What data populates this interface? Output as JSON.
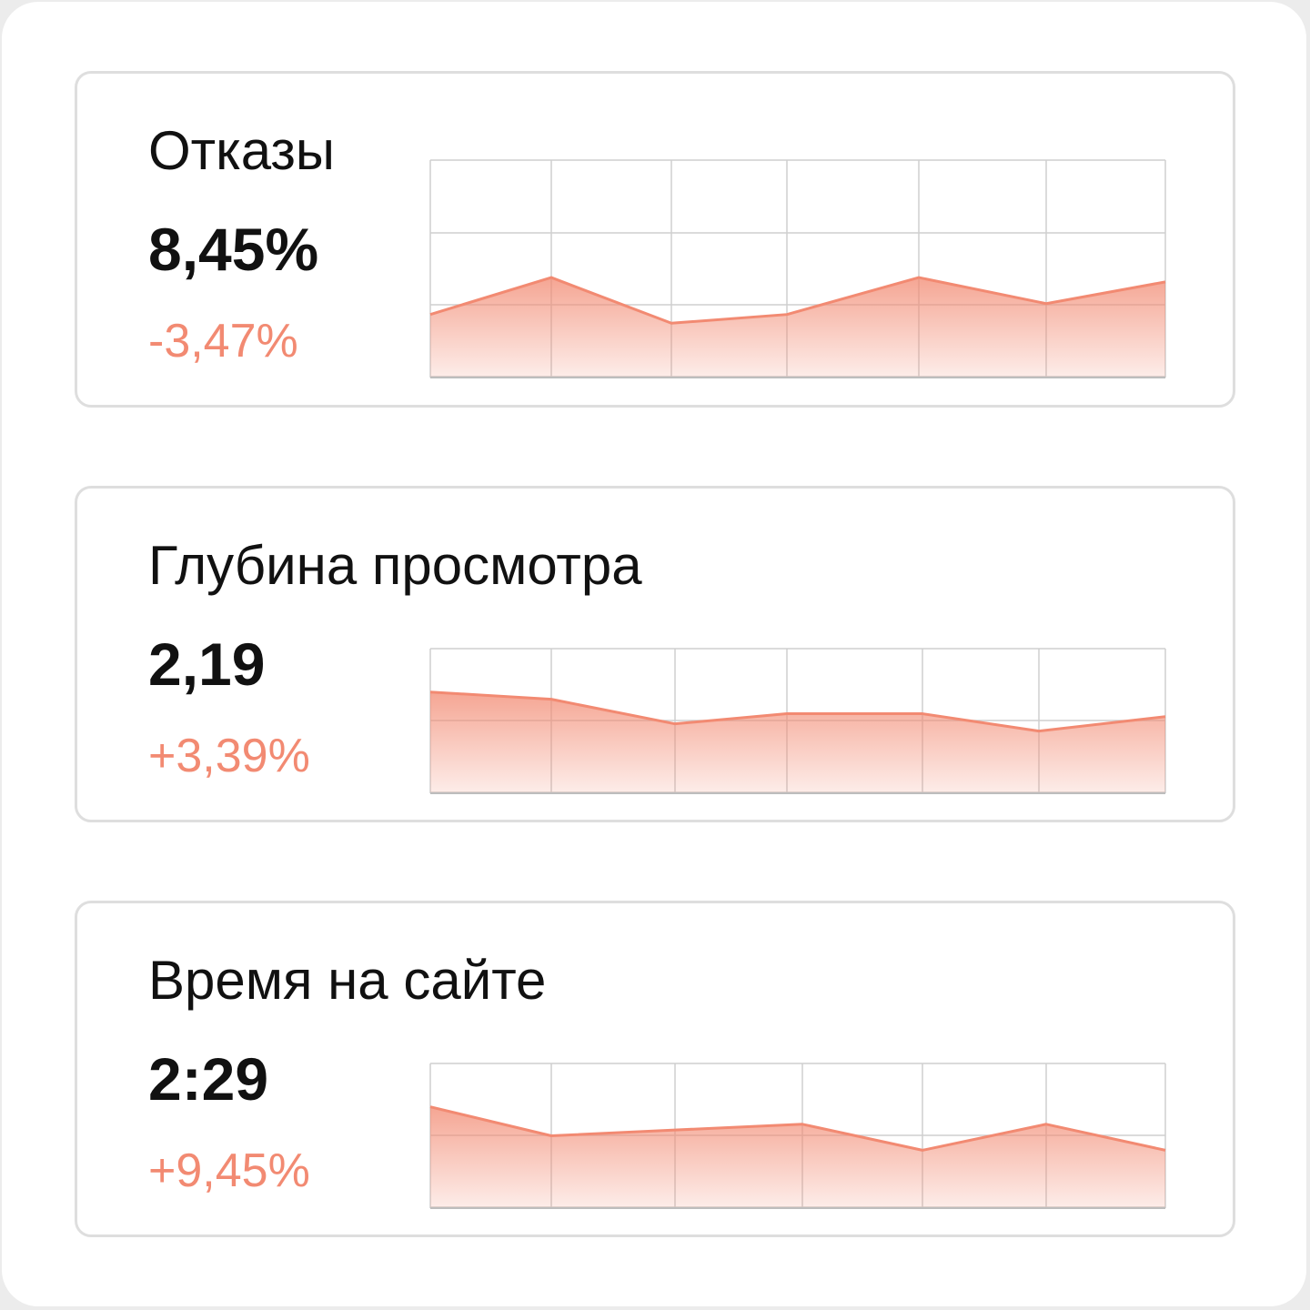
{
  "accent": "#f28a72",
  "cards": [
    {
      "title": "Отказы",
      "value": "8,45%",
      "change": "-3,47%"
    },
    {
      "title": "Глубина просмотра",
      "value": "2,19",
      "change": "+3,39%"
    },
    {
      "title": "Время на сайте",
      "value": "2:29",
      "change": "+9,45%"
    }
  ],
  "chart_data": [
    {
      "type": "area",
      "metric": "Отказы",
      "values": [
        0.29,
        0.46,
        0.25,
        0.29,
        0.46,
        0.34,
        0.44
      ],
      "ylim": [
        0,
        1
      ],
      "grid": true
    },
    {
      "type": "area",
      "metric": "Глубина просмотра",
      "values": [
        0.7,
        0.65,
        0.48,
        0.55,
        0.55,
        0.43,
        0.53
      ],
      "ylim": [
        0,
        1
      ],
      "grid": true
    },
    {
      "type": "area",
      "metric": "Время на сайте",
      "values": [
        0.7,
        0.5,
        0.54,
        0.58,
        0.4,
        0.58,
        0.4
      ],
      "ylim": [
        0,
        1
      ],
      "grid": true
    }
  ]
}
